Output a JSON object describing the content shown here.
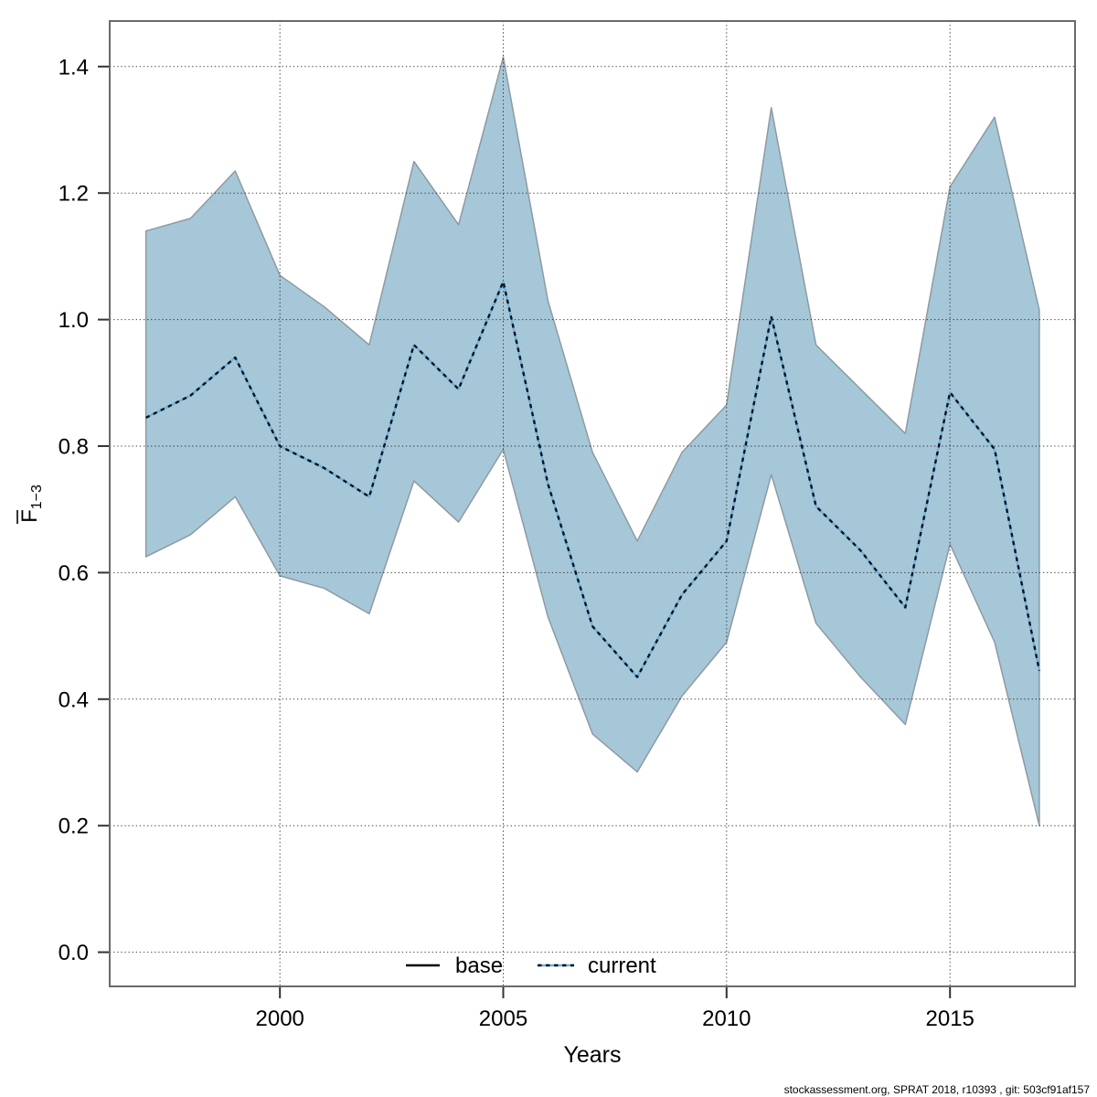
{
  "page": {
    "background": "#ffffff"
  },
  "axes": {
    "x_label": "Years",
    "y_label_base": "F",
    "y_label_sub": "1−3"
  },
  "legend": {
    "base_label": "base",
    "current_label": "current"
  },
  "footer": {
    "text": "stockassessment.org, SPRAT 2018, r10393 , git: 503cf91af157"
  },
  "colors": {
    "band_fill": "#a6c7d8",
    "band_edge": "#8d9aa2",
    "current_dash": "#0c131b",
    "current_under": "#6cb2dd",
    "grid": "#1a1a1a",
    "border": "#6a6a6a",
    "tick": "#333333"
  },
  "chart_data": {
    "type": "area",
    "title": "",
    "xlabel": "Years",
    "ylabel": "F̄_1−3",
    "x": [
      1997,
      1998,
      1999,
      2000,
      2001,
      2002,
      2003,
      2004,
      2005,
      2006,
      2007,
      2008,
      2009,
      2010,
      2011,
      2012,
      2013,
      2014,
      2015,
      2016,
      2017
    ],
    "series": [
      {
        "name": "current (mean)",
        "values": [
          0.845,
          0.88,
          0.94,
          0.8,
          0.765,
          0.72,
          0.96,
          0.89,
          1.06,
          0.74,
          0.515,
          0.435,
          0.565,
          0.65,
          1.005,
          0.705,
          0.635,
          0.545,
          0.885,
          0.795,
          0.445
        ]
      },
      {
        "name": "CI upper",
        "values": [
          1.14,
          1.16,
          1.235,
          1.07,
          1.02,
          0.96,
          1.25,
          1.15,
          1.415,
          1.03,
          0.79,
          0.65,
          0.79,
          0.865,
          1.335,
          0.96,
          0.89,
          0.82,
          1.21,
          1.32,
          1.015
        ]
      },
      {
        "name": "CI lower",
        "values": [
          0.625,
          0.66,
          0.72,
          0.595,
          0.575,
          0.535,
          0.745,
          0.68,
          0.795,
          0.53,
          0.345,
          0.285,
          0.405,
          0.49,
          0.755,
          0.52,
          0.435,
          0.36,
          0.645,
          0.49,
          0.2
        ]
      }
    ],
    "x_ticks": [
      2000,
      2005,
      2010,
      2015
    ],
    "x_tick_labels": [
      "2000",
      "2005",
      "2010",
      "2015"
    ],
    "y_ticks": [
      0.0,
      0.2,
      0.4,
      0.6,
      0.8,
      1.0,
      1.2,
      1.4
    ],
    "y_tick_labels": [
      "0.0",
      "0.2",
      "0.4",
      "0.6",
      "0.8",
      "1.0",
      "1.2",
      "1.4"
    ],
    "xlim": [
      1996.19,
      2017.8
    ],
    "ylim": [
      -0.054,
      1.472
    ],
    "grid": true,
    "legend_position": "bottom-center",
    "legend_entries": [
      "base",
      "current"
    ]
  }
}
